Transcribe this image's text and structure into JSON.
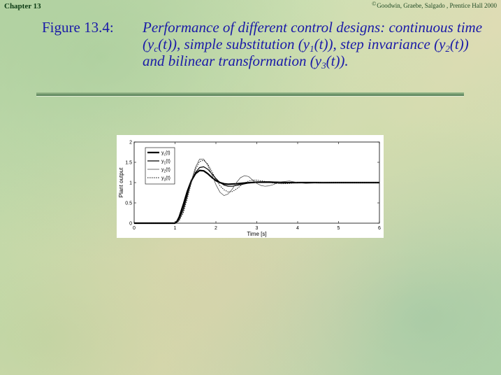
{
  "header": {
    "chapter": "Chapter 13",
    "copyright_symbol": "©",
    "copyright_text": "Goodwin, Graebe, Salgado , Prentice Hall 2000"
  },
  "figure": {
    "label": "Figure 13.4:",
    "caption_parts": {
      "p1": "Performance of different control designs: continuous time (",
      "y1": "y",
      "s1": "c",
      "p2": "(",
      "t1": "t",
      "p3": ")), simple substitution (",
      "y2": "y",
      "s2": "1",
      "p4": "(",
      "t2": "t",
      "p5": ")), step invariance (",
      "y3": "y",
      "s3": "2",
      "p6": "(",
      "t3": "t",
      "p7": ")) and bilinear transformation (",
      "y4": "y",
      "s4": "3",
      "p8": "(",
      "t4": "t",
      "p9": "))."
    }
  },
  "chart_data": {
    "type": "line",
    "xlabel": "Time [s]",
    "ylabel": "Plant output",
    "xlim": [
      0,
      6
    ],
    "ylim": [
      0,
      2
    ],
    "xticks": [
      "0",
      "1",
      "2",
      "3",
      "4",
      "5",
      "6"
    ],
    "yticks": [
      "0",
      "0.5",
      "1",
      "1.5",
      "2"
    ],
    "grid": false,
    "legend_position": "top-left",
    "series": [
      {
        "name": "yc(t)",
        "style": "thick-solid",
        "color": "#000000",
        "x": [
          0,
          1,
          1.05,
          1.1,
          1.2,
          1.3,
          1.4,
          1.5,
          1.6,
          1.7,
          1.8,
          1.9,
          2.0,
          2.1,
          2.2,
          2.3,
          2.5,
          2.7,
          3.0,
          3.3,
          3.6,
          4.0,
          5.0,
          6.0
        ],
        "y": [
          0,
          0,
          0.05,
          0.15,
          0.45,
          0.78,
          1.05,
          1.22,
          1.3,
          1.29,
          1.22,
          1.13,
          1.05,
          1.0,
          0.97,
          0.96,
          0.97,
          0.99,
          1.01,
          1.01,
          1.0,
          1.0,
          1.0,
          1.0
        ]
      },
      {
        "name": "y1(t)",
        "style": "solid",
        "color": "#000000",
        "x": [
          0,
          1,
          1.05,
          1.1,
          1.2,
          1.3,
          1.4,
          1.5,
          1.6,
          1.7,
          1.8,
          1.9,
          2.0,
          2.1,
          2.2,
          2.3,
          2.4,
          2.6,
          2.8,
          3.0,
          3.3,
          3.6,
          4.0,
          4.5,
          5.0,
          6.0
        ],
        "y": [
          0,
          0,
          0.03,
          0.1,
          0.35,
          0.7,
          1.02,
          1.25,
          1.37,
          1.39,
          1.33,
          1.22,
          1.1,
          1.0,
          0.94,
          0.91,
          0.91,
          0.95,
          0.99,
          1.01,
          1.02,
          1.01,
          1.0,
          1.0,
          1.0,
          1.0
        ]
      },
      {
        "name": "y2(t)",
        "style": "thin-solid",
        "color": "#404040",
        "x": [
          0,
          1,
          1.05,
          1.1,
          1.2,
          1.3,
          1.4,
          1.5,
          1.6,
          1.7,
          1.8,
          1.9,
          2.0,
          2.1,
          2.2,
          2.3,
          2.4,
          2.5,
          2.6,
          2.7,
          2.8,
          2.9,
          3.0,
          3.1,
          3.2,
          3.3,
          3.4,
          3.5,
          3.6,
          3.8,
          4.0,
          4.2,
          4.4,
          4.6,
          5.0,
          5.5,
          6.0
        ],
        "y": [
          0,
          0,
          0.02,
          0.08,
          0.3,
          0.65,
          1.05,
          1.38,
          1.58,
          1.58,
          1.43,
          1.2,
          0.95,
          0.76,
          0.68,
          0.72,
          0.84,
          1.0,
          1.12,
          1.17,
          1.15,
          1.06,
          0.98,
          0.93,
          0.91,
          0.92,
          0.95,
          0.99,
          1.02,
          1.04,
          1.0,
          0.98,
          0.99,
          1.01,
          1.0,
          1.0,
          1.0
        ]
      },
      {
        "name": "y3(t)",
        "style": "dotted",
        "color": "#000000",
        "x": [
          0,
          1,
          1.05,
          1.1,
          1.2,
          1.3,
          1.4,
          1.5,
          1.6,
          1.7,
          1.8,
          1.9,
          2.0,
          2.1,
          2.2,
          2.3,
          2.4,
          2.5,
          2.6,
          2.7,
          2.8,
          2.9,
          3.0,
          3.2,
          3.4,
          3.6,
          3.8,
          4.0,
          4.2,
          4.5,
          5.0,
          6.0
        ],
        "y": [
          0,
          0,
          0.02,
          0.06,
          0.25,
          0.6,
          1.0,
          1.33,
          1.52,
          1.55,
          1.46,
          1.28,
          1.08,
          0.92,
          0.82,
          0.77,
          0.78,
          0.84,
          0.92,
          0.99,
          1.04,
          1.06,
          1.06,
          1.03,
          0.99,
          0.97,
          0.98,
          1.0,
          1.01,
          1.0,
          1.0,
          1.0
        ]
      }
    ]
  }
}
